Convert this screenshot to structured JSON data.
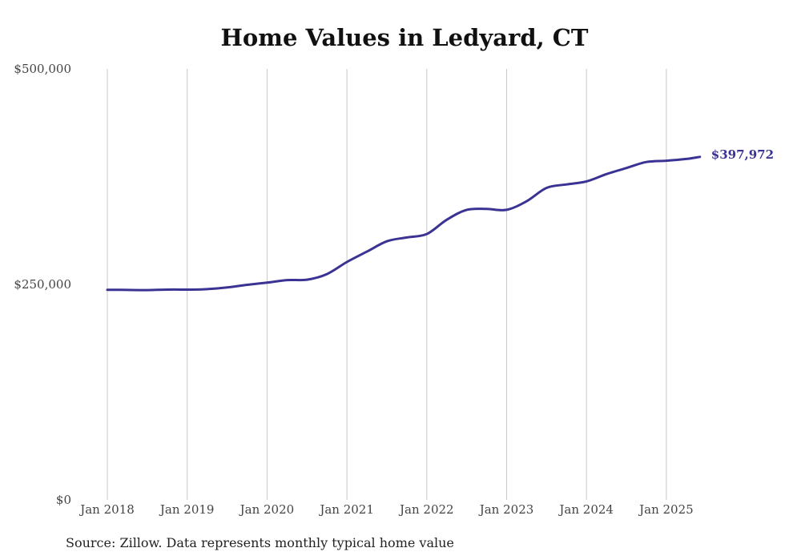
{
  "chart_data": {
    "type": "line",
    "title": "Home Values in Ledyard, CT",
    "xlabel": "",
    "ylabel": "",
    "ylim": [
      0,
      500000
    ],
    "yticks": [
      {
        "value": 0,
        "label": "$0"
      },
      {
        "value": 250000,
        "label": "$250,000"
      },
      {
        "value": 500000,
        "label": "$500,000"
      }
    ],
    "xticks": [
      {
        "value": 2018.0,
        "label": "Jan 2018"
      },
      {
        "value": 2019.0,
        "label": "Jan 2019"
      },
      {
        "value": 2020.0,
        "label": "Jan 2020"
      },
      {
        "value": 2021.0,
        "label": "Jan 2021"
      },
      {
        "value": 2022.0,
        "label": "Jan 2022"
      },
      {
        "value": 2023.0,
        "label": "Jan 2023"
      },
      {
        "value": 2024.0,
        "label": "Jan 2024"
      },
      {
        "value": 2025.0,
        "label": "Jan 2025"
      }
    ],
    "grid": "vertical",
    "line_color": "#3b3393",
    "end_label": "$397,972",
    "source": "Source: Zillow. Data represents monthly typical home value",
    "series": [
      {
        "points": [
          [
            2018.0,
            243800
          ],
          [
            2018.25,
            243600
          ],
          [
            2018.5,
            243400
          ],
          [
            2018.75,
            244000
          ],
          [
            2019.0,
            244000
          ],
          [
            2019.25,
            244500
          ],
          [
            2019.5,
            246500
          ],
          [
            2019.75,
            249500
          ],
          [
            2020.0,
            252000
          ],
          [
            2020.25,
            255000
          ],
          [
            2020.5,
            255500
          ],
          [
            2020.75,
            262000
          ],
          [
            2021.0,
            276000
          ],
          [
            2021.25,
            288000
          ],
          [
            2021.5,
            300000
          ],
          [
            2021.75,
            304500
          ],
          [
            2022.0,
            308500
          ],
          [
            2022.25,
            325000
          ],
          [
            2022.5,
            336500
          ],
          [
            2022.75,
            337500
          ],
          [
            2023.0,
            336500
          ],
          [
            2023.25,
            346500
          ],
          [
            2023.5,
            362000
          ],
          [
            2023.75,
            366000
          ],
          [
            2024.0,
            369500
          ],
          [
            2024.25,
            378000
          ],
          [
            2024.5,
            385000
          ],
          [
            2024.75,
            392000
          ],
          [
            2025.0,
            393500
          ],
          [
            2025.25,
            395500
          ],
          [
            2025.42,
            397972
          ]
        ]
      }
    ]
  }
}
